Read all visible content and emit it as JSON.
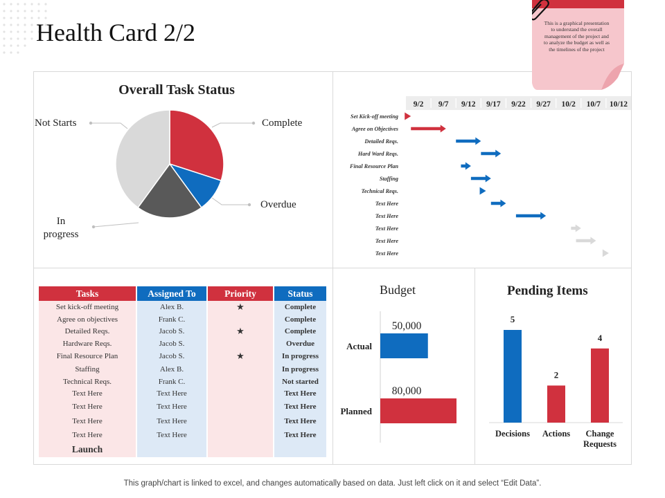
{
  "page": {
    "title": "Health Card 2/2",
    "note": "This is a graphical presentation to understand the overall management of the project and to analyze the budget as well as the timelines of the project",
    "footer": "This graph/chart is linked to excel,  and changes automatically based on data. Just left click on it and select “Edit Data”."
  },
  "colors": {
    "red": "#d0313e",
    "blue": "#0f6cbf",
    "dark_gray": "#595959",
    "light_gray": "#d9d9d9",
    "pink": "#fbe6e7",
    "light_blue": "#dde9f6"
  },
  "icons": {
    "priority": "star-icon",
    "note": "paperclip-icon"
  },
  "task_table": {
    "headers": [
      "Tasks",
      "Assigned To",
      "Priority",
      "Status"
    ],
    "rows": [
      {
        "task": "Set kick-off meeting",
        "assigned": "Alex B.",
        "priority": "★",
        "status": "Complete"
      },
      {
        "task": "Agree on objectives",
        "assigned": "Frank C.",
        "priority": "",
        "status": "Complete"
      },
      {
        "task": "Detailed Reqs.",
        "assigned": "Jacob S.",
        "priority": "★",
        "status": "Complete"
      },
      {
        "task": "Hardware Reqs.",
        "assigned": "Jacob S.",
        "priority": "",
        "status": "Overdue"
      },
      {
        "task": "Final Resource Plan",
        "assigned": "Jacob S.",
        "priority": "★",
        "status": "In progress"
      },
      {
        "task": "Staffing",
        "assigned": "Alex B.",
        "priority": "",
        "status": "In progress"
      },
      {
        "task": "Technical Reqs.",
        "assigned": "Frank C.",
        "priority": "",
        "status": "Not started"
      },
      {
        "task": "Text Here",
        "assigned": "Text Here",
        "priority": "",
        "status": "Text Here"
      },
      {
        "task": "Text Here",
        "assigned": "Text Here",
        "priority": "",
        "status": "Text Here"
      },
      {
        "task": "Text Here",
        "assigned": "Text Here",
        "priority": "",
        "status": "Text Here"
      },
      {
        "task": "Text Here",
        "assigned": "Text Here",
        "priority": "",
        "status": "Text Here"
      }
    ],
    "launch": "Launch"
  },
  "chart_data": [
    {
      "type": "pie",
      "title": "Overall Task Status",
      "series": [
        {
          "values": [
            30,
            10,
            20,
            40
          ]
        }
      ],
      "categories": [
        "Complete",
        "Overdue",
        "In progress",
        "Not Starts"
      ],
      "colors": [
        "#d0313e",
        "#0f6cbf",
        "#595959",
        "#d9d9d9"
      ],
      "start": "12 o'clock",
      "direction": "clockwise"
    },
    {
      "type": "gantt",
      "date_ticks": [
        "9/2",
        "9/7",
        "9/12",
        "9/17",
        "9/22",
        "9/27",
        "10/2",
        "10/7",
        "10/12"
      ],
      "tasks": [
        {
          "name": "Set Kick-off meeting",
          "start": "9/2",
          "end": "9/3",
          "color": "#d0313e"
        },
        {
          "name": "Agree on Objectives",
          "start": "9/3",
          "end": "9/10",
          "color": "#d0313e"
        },
        {
          "name": "Detailed Reqs.",
          "start": "9/12",
          "end": "9/17",
          "color": "#0f6cbf"
        },
        {
          "name": "Hard Ward Reqs.",
          "start": "9/17",
          "end": "9/21",
          "color": "#0f6cbf"
        },
        {
          "name": "Final Resource Plan",
          "start": "9/13",
          "end": "9/15",
          "color": "#0f6cbf"
        },
        {
          "name": "Staffing",
          "start": "9/15",
          "end": "9/19",
          "color": "#0f6cbf"
        },
        {
          "name": "Technical Reqs.",
          "start": "9/17",
          "end": "9/18",
          "color": "#0f6cbf"
        },
        {
          "name": "Text Here",
          "start": "9/19",
          "end": "9/22",
          "color": "#0f6cbf"
        },
        {
          "name": "Text Here",
          "start": "9/24",
          "end": "9/30",
          "color": "#0f6cbf"
        },
        {
          "name": "Text Here",
          "start": "10/5",
          "end": "10/7",
          "color": "#d9d9d9"
        },
        {
          "name": "Text Here",
          "start": "10/6",
          "end": "10/10",
          "color": "#d9d9d9"
        },
        {
          "name": "Text Here",
          "start": "10/12",
          "end": "10/12",
          "color": "#d9d9d9"
        }
      ]
    },
    {
      "type": "bar",
      "orientation": "horizontal",
      "title": "Budget",
      "categories": [
        "Actual",
        "Planned"
      ],
      "values": [
        50000,
        80000
      ],
      "value_labels": [
        "50,000",
        "80,000"
      ],
      "colors": [
        "#0f6cbf",
        "#d0313e"
      ],
      "xlim": [
        0,
        80000
      ]
    },
    {
      "type": "bar",
      "title": "Pending Items",
      "categories": [
        "Decisions",
        "Actions",
        "Change Requests"
      ],
      "values": [
        5,
        2,
        4
      ],
      "colors": [
        "#0f6cbf",
        "#d0313e",
        "#d0313e"
      ],
      "ylim": [
        0,
        5
      ]
    }
  ]
}
